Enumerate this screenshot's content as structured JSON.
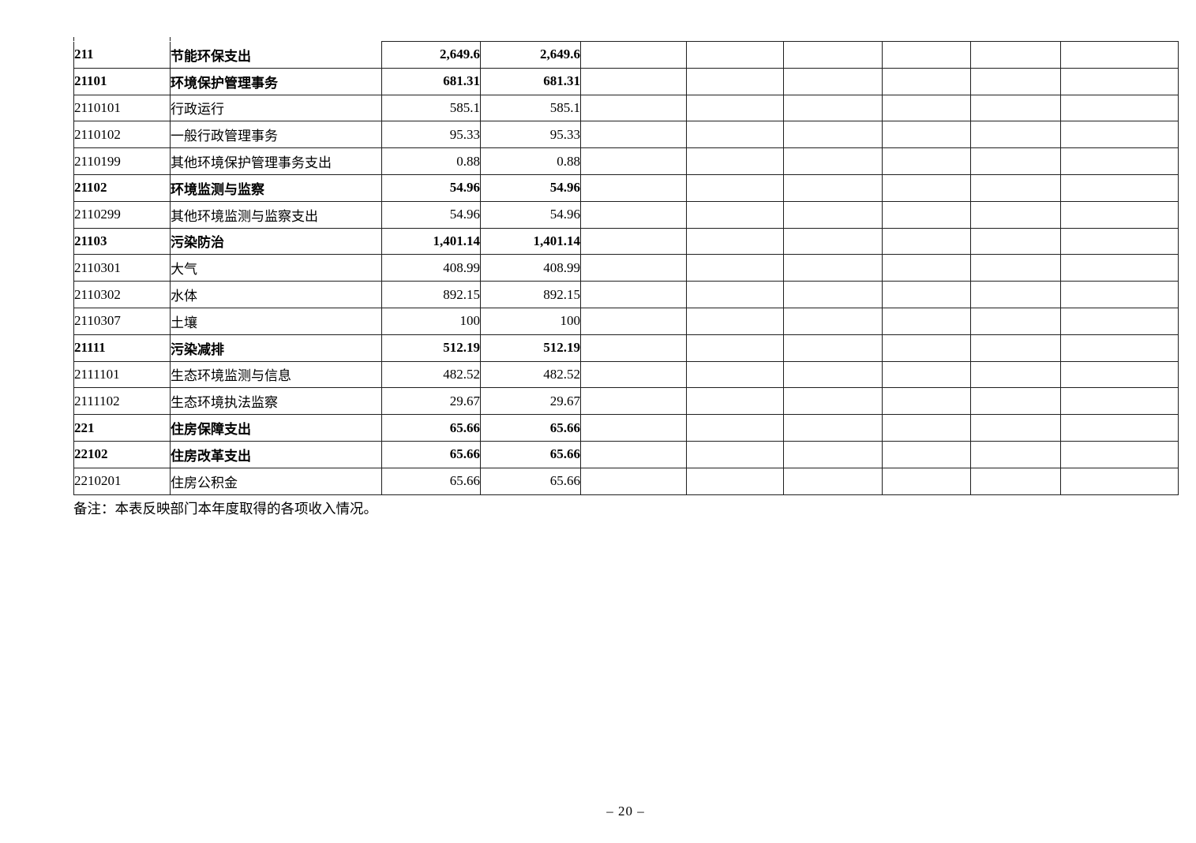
{
  "table": {
    "empty_columns": 6,
    "rows": [
      {
        "code": "211",
        "name": "节能环保支出",
        "amount1": "2,649.6",
        "amount2": "2,649.6",
        "bold": true
      },
      {
        "code": "21101",
        "name": "环境保护管理事务",
        "amount1": "681.31",
        "amount2": "681.31",
        "bold": true
      },
      {
        "code": "2110101",
        "name": "行政运行",
        "amount1": "585.1",
        "amount2": "585.1",
        "bold": false
      },
      {
        "code": "2110102",
        "name": "一般行政管理事务",
        "amount1": "95.33",
        "amount2": "95.33",
        "bold": false
      },
      {
        "code": "2110199",
        "name": "其他环境保护管理事务支出",
        "amount1": "0.88",
        "amount2": "0.88",
        "bold": false
      },
      {
        "code": "21102",
        "name": "环境监测与监察",
        "amount1": "54.96",
        "amount2": "54.96",
        "bold": true
      },
      {
        "code": "2110299",
        "name": "其他环境监测与监察支出",
        "amount1": "54.96",
        "amount2": "54.96",
        "bold": false
      },
      {
        "code": "21103",
        "name": "污染防治",
        "amount1": "1,401.14",
        "amount2": "1,401.14",
        "bold": true
      },
      {
        "code": "2110301",
        "name": "大气",
        "amount1": "408.99",
        "amount2": "408.99",
        "bold": false
      },
      {
        "code": "2110302",
        "name": "水体",
        "amount1": "892.15",
        "amount2": "892.15",
        "bold": false
      },
      {
        "code": "2110307",
        "name": "土壤",
        "amount1": "100",
        "amount2": "100",
        "bold": false
      },
      {
        "code": "21111",
        "name": "污染减排",
        "amount1": "512.19",
        "amount2": "512.19",
        "bold": true
      },
      {
        "code": "2111101",
        "name": "生态环境监测与信息",
        "amount1": "482.52",
        "amount2": "482.52",
        "bold": false
      },
      {
        "code": "2111102",
        "name": "生态环境执法监察",
        "amount1": "29.67",
        "amount2": "29.67",
        "bold": false
      },
      {
        "code": "221",
        "name": "住房保障支出",
        "amount1": "65.66",
        "amount2": "65.66",
        "bold": true
      },
      {
        "code": "22102",
        "name": "住房改革支出",
        "amount1": "65.66",
        "amount2": "65.66",
        "bold": true
      },
      {
        "code": "2210201",
        "name": "住房公积金",
        "amount1": "65.66",
        "amount2": "65.66",
        "bold": false
      }
    ]
  },
  "note": "备注：本表反映部门本年度取得的各项收入情况。",
  "footer": {
    "page_number": "– 20 –"
  }
}
